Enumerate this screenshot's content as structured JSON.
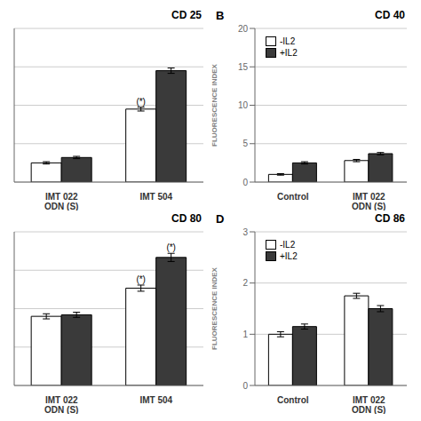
{
  "chart_data": [
    {
      "type": "bar",
      "title": "CD 25",
      "categories": [
        "IMT 022\nODN (S)",
        "IMT 504"
      ],
      "series": [
        {
          "color": "#ffffff",
          "values": [
            2.5,
            9.5
          ],
          "errors": [
            0.15,
            0.25
          ]
        },
        {
          "color": "#3a3a3a",
          "values": [
            3.2,
            14.5
          ],
          "errors": [
            0.15,
            0.35
          ]
        }
      ],
      "ylim": [
        0,
        20
      ],
      "yticks": [
        0,
        5,
        10,
        15,
        20
      ],
      "tick_labels": "x",
      "grid": true,
      "annotations": [
        {
          "text": "(*)",
          "category": "IMT 504",
          "series": 0
        }
      ]
    },
    {
      "type": "bar",
      "title": "CD 40",
      "panel_label": "B",
      "categories": [
        "Control",
        "IMT 022\nODN (S)"
      ],
      "series": [
        {
          "name": "-IL2",
          "color": "#ffffff",
          "values": [
            1.0,
            2.8
          ],
          "errors": [
            0.1,
            0.15
          ]
        },
        {
          "name": "+IL2",
          "color": "#3a3a3a",
          "values": [
            2.5,
            3.7
          ],
          "errors": [
            0.15,
            0.15
          ]
        }
      ],
      "ylabel": "FLUORESCENCE INDEX",
      "ylim": [
        0,
        20
      ],
      "yticks": [
        0,
        5,
        10,
        15,
        20
      ],
      "grid": true,
      "legend": "upper left"
    },
    {
      "type": "bar",
      "title": "CD 80",
      "categories": [
        "IMT 022\nODN (S)",
        "IMT 504"
      ],
      "series": [
        {
          "color": "#ffffff",
          "values": [
            1.35,
            1.9
          ],
          "errors": [
            0.05,
            0.06
          ]
        },
        {
          "color": "#3a3a3a",
          "values": [
            1.38,
            2.5
          ],
          "errors": [
            0.05,
            0.08
          ]
        }
      ],
      "ylim": [
        0,
        3
      ],
      "yticks": [
        0,
        0.75,
        1.5,
        2.25,
        3
      ],
      "tick_labels": "x",
      "grid": true,
      "annotations": [
        {
          "text": "(*)",
          "category": "IMT 504",
          "series": 0
        },
        {
          "text": "(*)",
          "category": "IMT 504",
          "series": 1
        }
      ]
    },
    {
      "type": "bar",
      "title": "CD 86",
      "panel_label": "D",
      "categories": [
        "Control",
        "IMT 022\nODN (S)"
      ],
      "series": [
        {
          "name": "-IL2",
          "color": "#ffffff",
          "values": [
            1.0,
            1.75
          ],
          "errors": [
            0.05,
            0.05
          ]
        },
        {
          "name": "+IL2",
          "color": "#3a3a3a",
          "values": [
            1.15,
            1.5
          ],
          "errors": [
            0.05,
            0.06
          ]
        }
      ],
      "ylabel": "FLUORESCENCE INDEX",
      "ylim": [
        0,
        3
      ],
      "yticks": [
        0,
        1,
        2,
        3
      ],
      "grid": true,
      "legend": "upper left"
    }
  ]
}
